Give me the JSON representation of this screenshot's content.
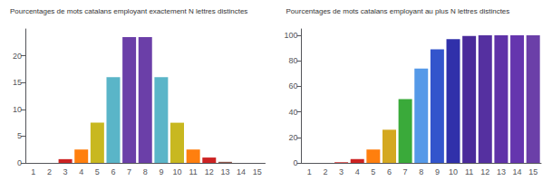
{
  "chart_data": [
    {
      "type": "bar",
      "title": "Pourcentages de mots catalans employant exactement N lettres distinctes",
      "categories": [
        1,
        2,
        3,
        4,
        5,
        6,
        7,
        8,
        9,
        10,
        11,
        12,
        13,
        14,
        15
      ],
      "values": [
        0,
        0,
        0.7,
        2.5,
        7.5,
        16.0,
        23.5,
        23.5,
        16.0,
        7.5,
        2.5,
        1.0,
        0.2,
        0,
        0
      ],
      "colors": [
        "#cc2222",
        "#cc2222",
        "#cc2222",
        "#ff7f0e",
        "#c8b820",
        "#5ab5c8",
        "#6b3fa8",
        "#6b3fa8",
        "#5ab5c8",
        "#c8b820",
        "#ff7f0e",
        "#cc2222",
        "#8c564b",
        "#cc2222",
        "#cc2222"
      ],
      "ylim": [
        0,
        25
      ],
      "yticks": [
        0,
        5,
        10,
        15,
        20
      ],
      "grid": false
    },
    {
      "type": "bar",
      "title": "Pourcentages de mots catalans employant au plus N lettres distinctes",
      "categories": [
        1,
        2,
        3,
        4,
        5,
        6,
        7,
        8,
        9,
        10,
        11,
        12,
        13,
        14,
        15
      ],
      "values": [
        0,
        0,
        0.5,
        3.0,
        10.5,
        26.0,
        50.0,
        74.0,
        89.0,
        97.0,
        99.5,
        100.0,
        100.0,
        100.0,
        100.0
      ],
      "colors": [
        "#cc2222",
        "#cc2222",
        "#cc2222",
        "#cc2222",
        "#ff7f0e",
        "#d4a820",
        "#3aaa3a",
        "#5599e8",
        "#3355cc",
        "#3030aa",
        "#4a2a9a",
        "#5530a0",
        "#5f32a8",
        "#6535ae",
        "#6b3fa8"
      ],
      "ylim": [
        0,
        105
      ],
      "yticks": [
        0,
        20,
        40,
        60,
        80,
        100
      ],
      "grid": false
    }
  ]
}
